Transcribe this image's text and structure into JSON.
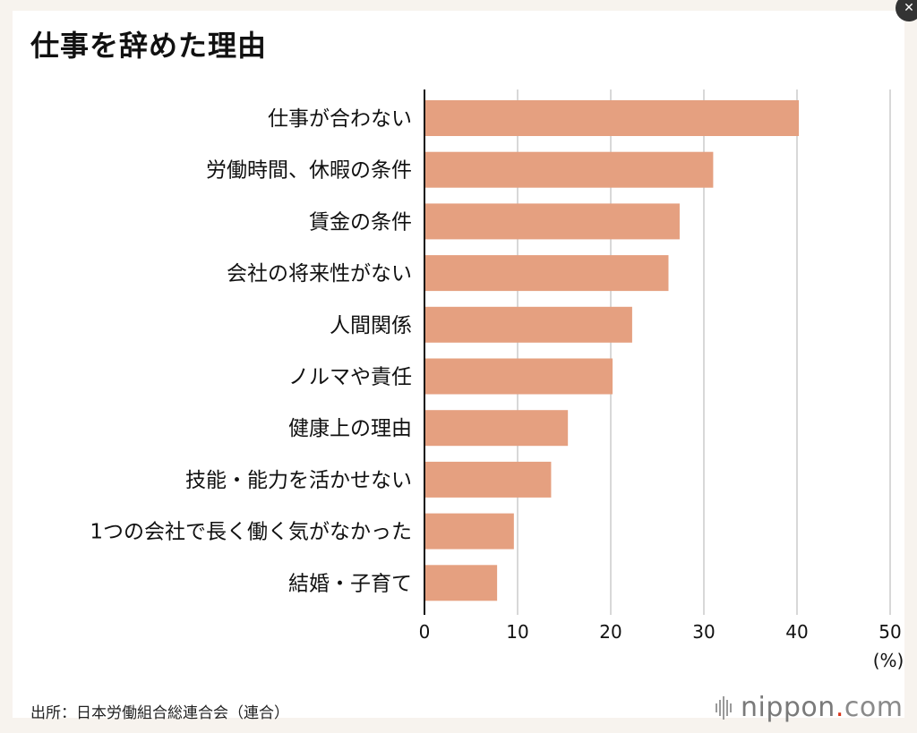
{
  "title": "仕事を辞めた理由",
  "source": "出所：日本労働組合総連合会（連合）",
  "brand": {
    "name": "nippon",
    "dot": ".",
    "tld": "com"
  },
  "colors": {
    "bar": "#e5a080",
    "grid": "#cccccc",
    "axis": "#111111",
    "brand_dot": "#d9361c"
  },
  "chart_data": {
    "type": "bar",
    "orientation": "horizontal",
    "categories": [
      "仕事が合わない",
      "労働時間、休暇の条件",
      "賃金の条件",
      "会社の将来性がない",
      "人間関係",
      "ノルマや責任",
      "健康上の理由",
      "技能・能力を活かせない",
      "1つの会社で長く働く気がなかった",
      "結婚・子育て"
    ],
    "values": [
      40.2,
      31.0,
      27.4,
      26.2,
      22.3,
      20.2,
      15.4,
      13.6,
      9.6,
      7.8
    ],
    "xlim": [
      0,
      50
    ],
    "ticks": [
      "0",
      "10",
      "20",
      "30",
      "40",
      "50"
    ],
    "unit": "(%)",
    "grid": true
  }
}
